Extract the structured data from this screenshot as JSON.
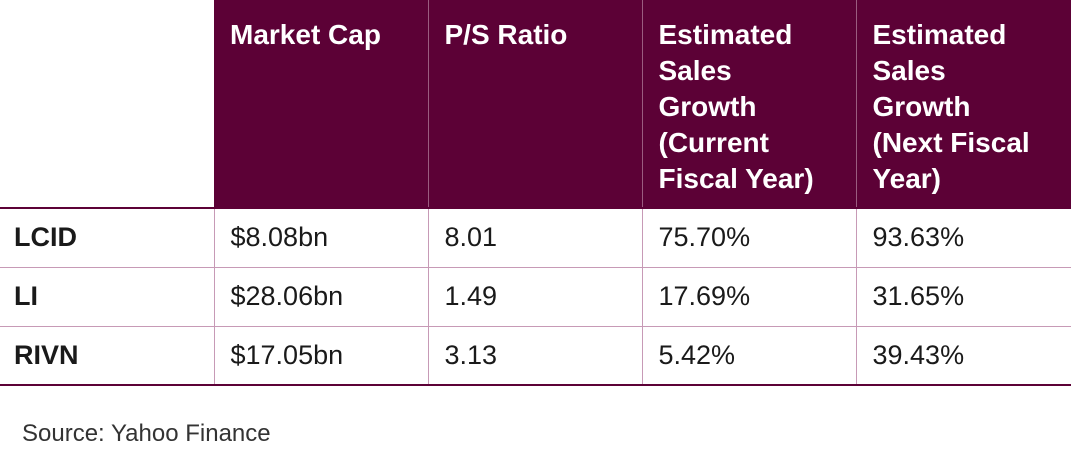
{
  "table": {
    "headers": [
      "",
      "Market Cap",
      "P/S Ratio",
      "Estimated Sales Growth (Current Fiscal Year)",
      "Estimated Sales Growth (Next Fiscal Year)"
    ],
    "header_lines": [
      [],
      [
        "Market Cap"
      ],
      [
        "P/S Ratio"
      ],
      [
        "Estimated",
        "Sales",
        "Growth",
        "(Current",
        "Fiscal Year)"
      ],
      [
        "Estimated",
        "Sales",
        "Growth",
        "(Next Fiscal",
        "Year)"
      ]
    ],
    "rows": [
      [
        "LCID",
        "$8.08bn",
        "8.01",
        "75.70%",
        "93.63%"
      ],
      [
        "LI",
        "$28.06bn",
        "1.49",
        "17.69%",
        "31.65%"
      ],
      [
        "RIVN",
        "$17.05bn",
        "3.13",
        "5.42%",
        "39.43%"
      ]
    ]
  },
  "source": "Source: Yahoo Finance",
  "colors": {
    "header_bg": "#5c0136",
    "header_text": "#ffffff",
    "grid": "#c79ab6"
  }
}
